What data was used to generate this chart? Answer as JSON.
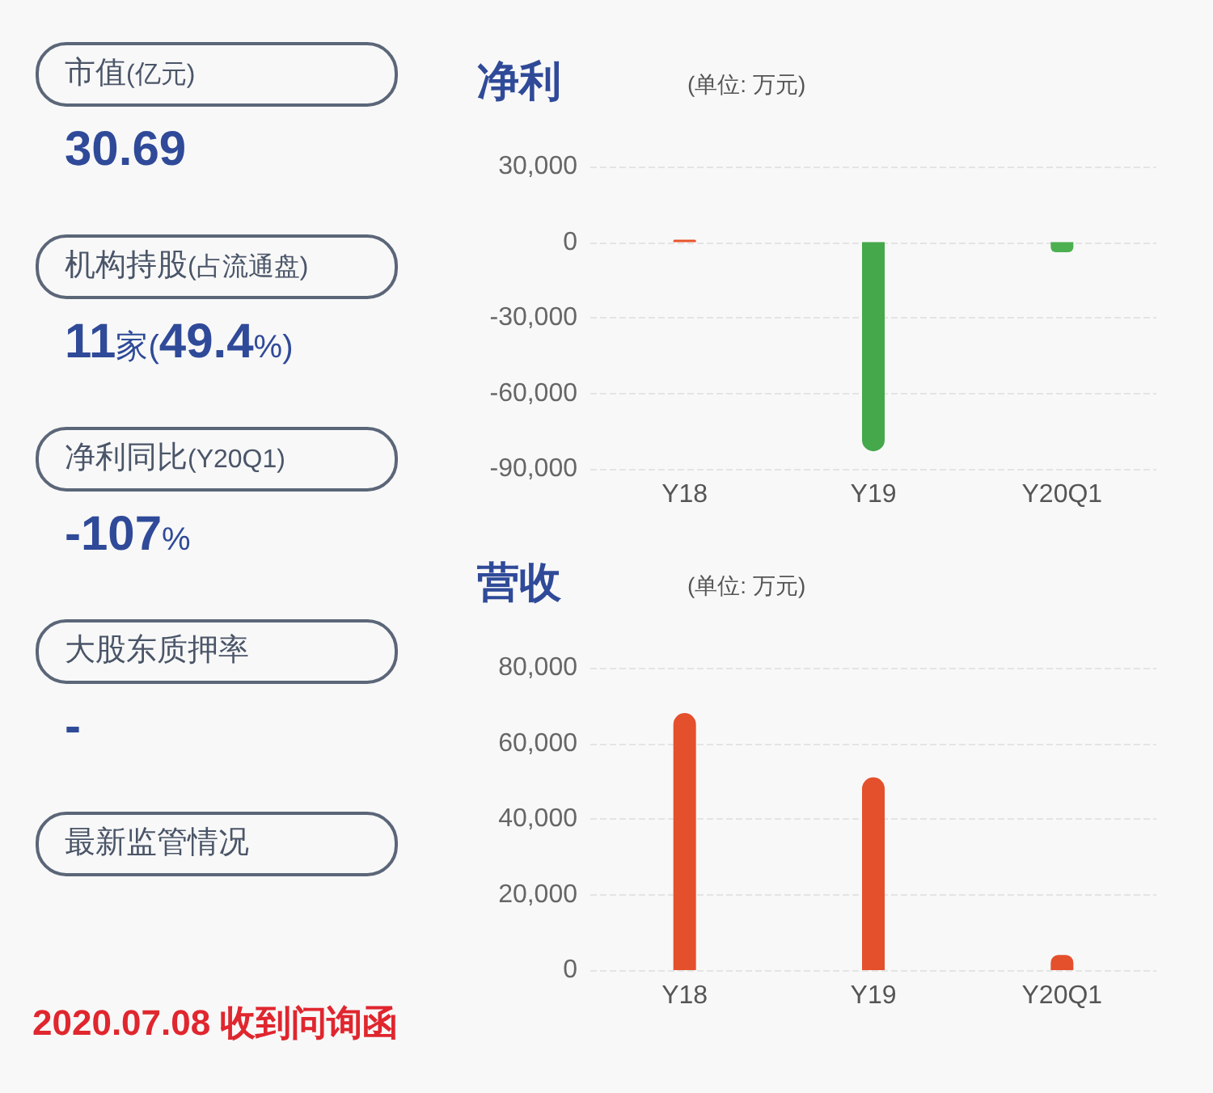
{
  "chart_data": [
    {
      "type": "other",
      "annotations": [
        "市值(亿元)",
        "30.69",
        "机构持股(占流通盘)",
        "11家(49.4%)",
        "净利同比(Y20Q1)",
        "-107%",
        "大股东质押率",
        "-",
        "最新监管情况",
        "2020.07.08 收到问询函"
      ]
    },
    {
      "type": "bar",
      "title": "净利",
      "subtitle": "(单位: 万元)",
      "categories": [
        "Y18",
        "Y19",
        "Y20Q1"
      ],
      "series": [
        {
          "values": [
            1000,
            -83000,
            -4000
          ],
          "colors": [
            "#e8542a",
            "#45a84a",
            "#4caf50"
          ]
        }
      ],
      "ylim": [
        -90000,
        30000
      ],
      "yticks": [
        {
          "value": -90000,
          "label": "-90,000"
        },
        {
          "value": -60000,
          "label": "-60,000"
        },
        {
          "value": -30000,
          "label": "-30,000"
        },
        0,
        {
          "value": 30000,
          "label": "30,000"
        }
      ],
      "grid": "y"
    },
    {
      "type": "bar",
      "title": "营收",
      "subtitle": "(单位: 万元)",
      "categories": [
        "Y18",
        "Y19",
        "Y20Q1"
      ],
      "series": [
        {
          "values": [
            68000,
            51000,
            4000
          ],
          "colors": [
            "#e4502c",
            "#e4502c",
            "#e4502c"
          ]
        }
      ],
      "ylim": [
        0,
        80000
      ],
      "yticks": [
        0,
        {
          "value": 20000,
          "label": "20,000"
        },
        {
          "value": 40000,
          "label": "40,000"
        },
        {
          "value": 60000,
          "label": "60,000"
        },
        {
          "value": 80000,
          "label": "80,000"
        }
      ],
      "grid": "y"
    }
  ]
}
